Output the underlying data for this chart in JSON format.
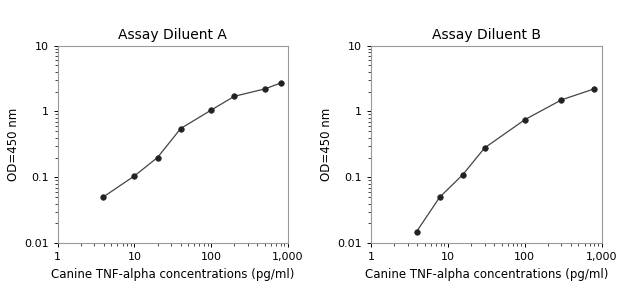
{
  "title_A": "Assay Diluent A",
  "title_B": "Assay Diluent B",
  "xlabel": "Canine TNF-alpha concentrations (pg/ml)",
  "ylabel": "OD=450 nm",
  "xlim": [
    1,
    1000
  ],
  "ylim": [
    0.01,
    10
  ],
  "x_A": [
    3.9,
    10,
    20,
    40,
    100,
    200,
    500,
    800
  ],
  "y_A": [
    0.05,
    0.105,
    0.2,
    0.55,
    1.05,
    1.7,
    2.2,
    2.7
  ],
  "x_B": [
    3.9,
    7.8,
    15.6,
    30,
    100,
    300,
    800
  ],
  "y_B": [
    0.015,
    0.05,
    0.11,
    0.28,
    0.75,
    1.5,
    2.2
  ],
  "line_color": "#444444",
  "marker_color": "#222222",
  "bg_color": "#ffffff",
  "title_fontsize": 10,
  "label_fontsize": 8.5,
  "tick_fontsize": 8,
  "spine_color": "#999999"
}
